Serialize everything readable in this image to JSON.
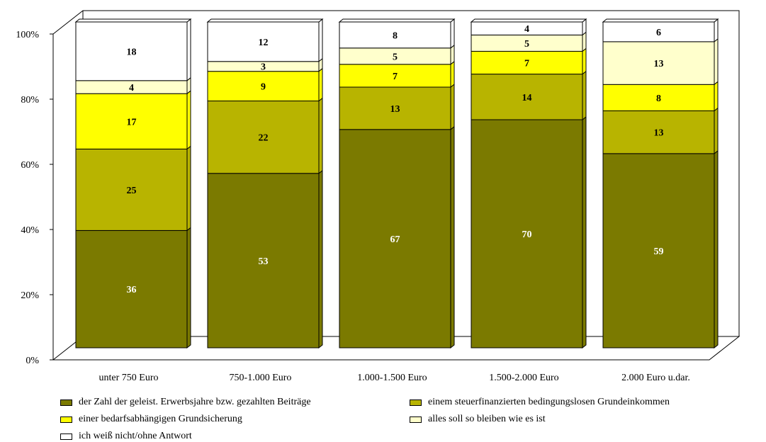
{
  "chart_data": {
    "type": "bar",
    "stacked": true,
    "percent": true,
    "categories": [
      "unter 750 Euro",
      "750-1.000 Euro",
      "1.000-1.500 Euro",
      "1.500-2.000 Euro",
      "2.000 Euro u.dar."
    ],
    "series": [
      {
        "name": "der Zahl der geleist. Erwerbsjahre bzw. gezahlten Beiträge",
        "color": "#7b7a00",
        "label_color": "#ffffff",
        "values": [
          36,
          53,
          67,
          70,
          59
        ]
      },
      {
        "name": "einem steuerfinanzierten bedingungslosen Grundeinkommen",
        "color": "#b8b400",
        "label_color": "#000000",
        "values": [
          25,
          22,
          13,
          14,
          13
        ]
      },
      {
        "name": "einer bedarfsabhängigen Grundsicherung",
        "color": "#ffff00",
        "label_color": "#000000",
        "values": [
          17,
          9,
          7,
          7,
          8
        ]
      },
      {
        "name": "alles soll so bleiben wie es ist",
        "color": "#ffffcc",
        "label_color": "#000000",
        "values": [
          4,
          3,
          5,
          5,
          13
        ]
      },
      {
        "name": "ich weiß nicht/ohne Antwort",
        "color": "#ffffff",
        "label_color": "#000000",
        "values": [
          18,
          12,
          8,
          4,
          6
        ]
      }
    ],
    "yticks": [
      "0%",
      "20%",
      "40%",
      "60%",
      "80%",
      "100%"
    ],
    "ylim": [
      0,
      100
    ],
    "three_d": true,
    "legend_position": "bottom"
  }
}
